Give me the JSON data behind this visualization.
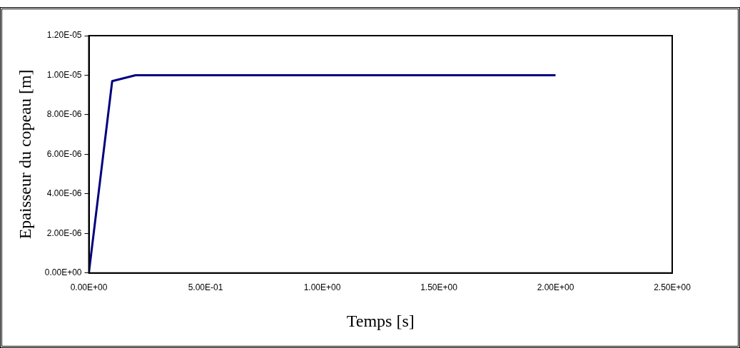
{
  "chart_data": {
    "type": "line",
    "xlabel": "Temps [s]",
    "ylabel": "Epaisseur du copeau [m]",
    "x": [
      0,
      0.1,
      0.2,
      2
    ],
    "series": [
      {
        "color": "#000080",
        "values": [
          0,
          9.7e-06,
          1e-05,
          1e-05
        ]
      }
    ],
    "xlim": [
      0,
      2.5
    ],
    "xticks": [
      {
        "value": 0,
        "label": "0.00E+00"
      },
      {
        "value": 0.5,
        "label": "5.00E-01"
      },
      {
        "value": 1,
        "label": "1.00E+00"
      },
      {
        "value": 1.5,
        "label": "1.50E+00"
      },
      {
        "value": 2,
        "label": "2.00E+00"
      },
      {
        "value": 2.5,
        "label": "2.50E+00"
      }
    ],
    "ylim": [
      0,
      1.2e-05
    ],
    "yticks": [
      {
        "value": 0,
        "label": "0.00E+00"
      },
      {
        "value": 2e-06,
        "label": "2.00E-06"
      },
      {
        "value": 4e-06,
        "label": "4.00E-06"
      },
      {
        "value": 6e-06,
        "label": "6.00E-06"
      },
      {
        "value": 8e-06,
        "label": "8.00E-06"
      },
      {
        "value": 1e-05,
        "label": "1.00E-05"
      },
      {
        "value": 1.2e-05,
        "label": "1.20E-05"
      }
    ],
    "grid": false,
    "legend": false,
    "marker": "none",
    "line_style": "solid"
  }
}
